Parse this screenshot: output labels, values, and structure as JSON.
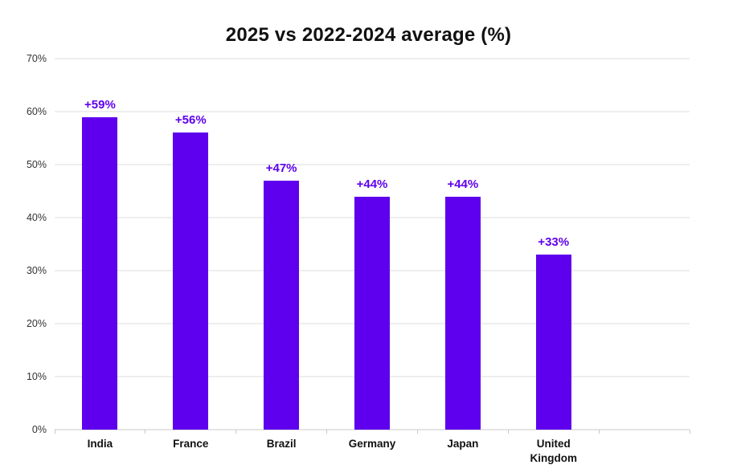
{
  "chart_data": {
    "type": "bar",
    "title": "2025 vs 2022-2024 average (%)",
    "categories": [
      "India",
      "France",
      "Brazil",
      "Germany",
      "Japan",
      "United Kingdom"
    ],
    "values": [
      59,
      56,
      47,
      44,
      44,
      33
    ],
    "bar_labels": [
      "+59%",
      "+56%",
      "+47%",
      "+44%",
      "+44%",
      "+33%"
    ],
    "xlabel": "",
    "ylabel": "",
    "ylim": [
      0,
      70
    ],
    "yticks": [
      0,
      10,
      20,
      30,
      40,
      50,
      60,
      70
    ],
    "ytick_labels": [
      "0%",
      "10%",
      "20%",
      "30%",
      "40%",
      "50%",
      "60%",
      "70%"
    ],
    "grid": "horizontal",
    "legend_position": "none",
    "trailing_empty_slots": 1,
    "colors": {
      "bar": "#5E00EE",
      "bar_label": "#5E00EE",
      "title_text": "#111111",
      "axis_text": "#333333",
      "category_text": "#111111",
      "gridline": "#DCDCDC",
      "axis_line": "#C8C8C8",
      "background": "#FFFFFF"
    }
  }
}
